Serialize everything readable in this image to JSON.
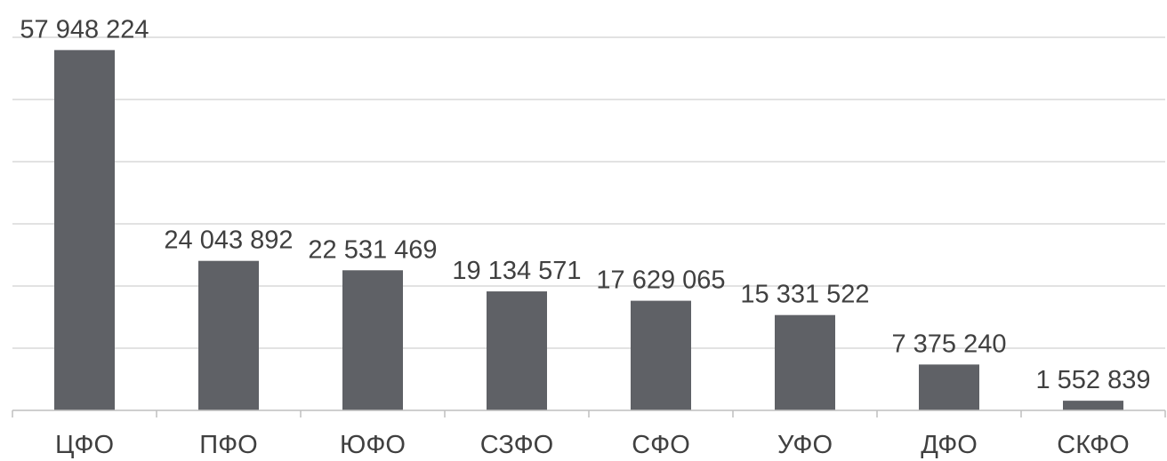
{
  "chart_data": {
    "type": "bar",
    "categories": [
      "ЦФО",
      "ПФО",
      "ЮФО",
      "СЗФО",
      "СФО",
      "УФО",
      "ДФО",
      "СКФО"
    ],
    "values": [
      57948224,
      24043892,
      22531469,
      19134571,
      17629065,
      15331522,
      7375240,
      1552839
    ],
    "value_labels": [
      "57 948 224",
      "24 043 892",
      "22 531 469",
      "19 134 571",
      "17 629 065",
      "15 331 522",
      "7 375 240",
      "1 552 839"
    ],
    "ylim": [
      0,
      60000000
    ],
    "grid": true,
    "gridline_step": 10000000,
    "colors": {
      "bar": "#5f6166",
      "grid": "#d9d9d9",
      "text": "#404040"
    }
  }
}
